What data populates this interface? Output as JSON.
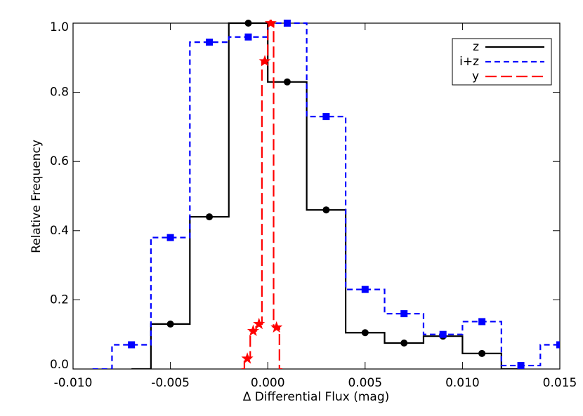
{
  "chart_data": {
    "type": "histogram-step",
    "xlabel": "Δ Differential Flux (mag)",
    "ylabel": "Relative Frequency",
    "xlim": [
      -0.01,
      0.015
    ],
    "ylim": [
      0,
      1
    ],
    "xticks": [
      {
        "value": -0.01,
        "label": "-0.010"
      },
      {
        "value": -0.005,
        "label": "-0.005"
      },
      {
        "value": 0,
        "label": "0.000"
      },
      {
        "value": 0.005,
        "label": "0.005"
      },
      {
        "value": 0.01,
        "label": "0.010"
      },
      {
        "value": 0.015,
        "label": "0.015"
      }
    ],
    "yticks": [
      {
        "value": 0,
        "label": "0.0"
      },
      0.2,
      0.4,
      0.6,
      0.8,
      {
        "value": 1,
        "label": "1.0"
      }
    ],
    "legend": "upper right",
    "series": [
      {
        "name": "z",
        "color": "#000000",
        "linestyle": "solid",
        "marker": "circle",
        "x": [
          -0.007,
          -0.005,
          -0.003,
          -0.001,
          0.001,
          0.003,
          0.005,
          0.007,
          0.009,
          0.011,
          0.013
        ],
        "values": [
          0,
          0.13,
          0.44,
          1.0,
          0.83,
          0.46,
          0.105,
          0.075,
          0.095,
          0.045,
          0
        ]
      },
      {
        "name": "i+z",
        "color": "#0000ff",
        "linestyle": "dashed",
        "marker": "square",
        "x": [
          -0.009,
          -0.007,
          -0.005,
          -0.003,
          -0.001,
          0.001,
          0.003,
          0.005,
          0.007,
          0.009,
          0.011,
          0.013,
          0.015
        ],
        "values": [
          0,
          0.07,
          0.38,
          0.945,
          0.96,
          1.0,
          0.73,
          0.23,
          0.16,
          0.1,
          0.137,
          0.01,
          0.07
        ]
      },
      {
        "name": "y",
        "color": "#ff0000",
        "linestyle": "longdash",
        "marker": "star",
        "x": [
          -0.00135,
          -0.00105,
          -0.00075,
          -0.00045,
          -0.00015,
          0.00015,
          0.00045,
          0.00075
        ],
        "values": [
          0,
          0.03,
          0.11,
          0.13,
          0.89,
          1.0,
          0.12,
          0
        ]
      }
    ]
  }
}
